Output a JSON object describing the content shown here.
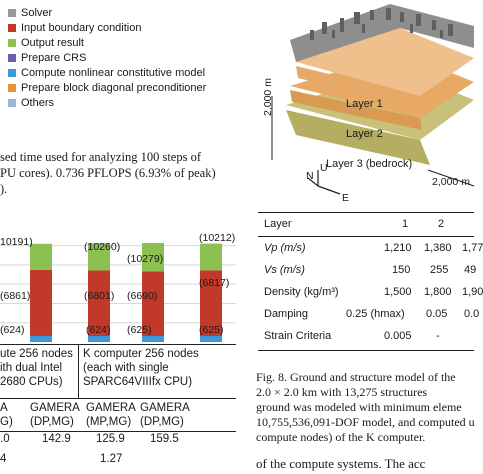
{
  "legend": [
    {
      "label": "Solver",
      "color": "#9a9a9a"
    },
    {
      "label": "Input boundary condition",
      "color": "#c0392b"
    },
    {
      "label": "Output result",
      "color": "#8cc152"
    },
    {
      "label": "Prepare CRS",
      "color": "#6a5fa8"
    },
    {
      "label": "Compute nonlinear constitutive model",
      "color": "#3a9ad9"
    },
    {
      "label": "Prepare block diagonal preconditioner",
      "color": "#e9923a"
    },
    {
      "label": "Others",
      "color": "#9bb7d4"
    }
  ],
  "caption_left": {
    "line1": "sed time used for analyzing 100 steps of",
    "line2": "PU cores). 0.736 PFLOPS (6.93% of peak)",
    "line3": ")."
  },
  "chart_data": {
    "type": "bar",
    "categories": [
      "GAMERA (MP,MG) dual Intel",
      "GAMERA (DP,MG) dual Intel",
      "GAMERA (MP,MG) K computer",
      "GAMERA (DP,MG) K computer"
    ],
    "series": [
      {
        "name": "Compute nonlinear constitutive model",
        "values": [
          624,
          624,
          625,
          625
        ]
      },
      {
        "name": "Input boundary condition",
        "values": [
          6861,
          6801,
          6690,
          6817
        ]
      },
      {
        "name": "Output result",
        "values": [
          2706,
          2835,
          2964,
          2770
        ]
      }
    ],
    "totals": [
      10191,
      10260,
      10279,
      10212
    ],
    "data_labels": {
      "bar1": [
        "(624)",
        "(6861)",
        "10191)"
      ],
      "bar2": [
        "(624)",
        "(6801)",
        "(10260)"
      ],
      "bar3": [
        "(625)",
        "(6690)",
        "(10279)"
      ],
      "bar4": [
        "(625)",
        "(6817)",
        "(10212)"
      ]
    },
    "ylim": [
      0,
      11000
    ]
  },
  "chart_groups": {
    "left": {
      "line1": "ute 256 nodes",
      "line2": "ith dual Intel",
      "line3": "2680 CPUs)"
    },
    "right": {
      "line1": "K computer 256 nodes",
      "line2": "(each with single",
      "line3": "SPARC64VIIIfx CPU)"
    }
  },
  "chart_table": {
    "headers": [
      "A",
      "GAMERA",
      "GAMERA",
      "GAMERA"
    ],
    "subheaders": [
      "G)",
      "(DP,MG)",
      "(MP,MG)",
      "(DP,MG)"
    ],
    "row1": [
      ".0",
      "142.9",
      "125.9",
      "159.5"
    ],
    "row2": [
      "4",
      "",
      "1.27",
      ""
    ]
  },
  "model3d": {
    "layer1": "Layer 1",
    "layer2": "Layer 2",
    "layer3": "Layer 3 (bedrock)",
    "dim_vertical": "2,000 m",
    "dim_horizontal": "2,000 m",
    "axis_n": "N",
    "axis_u": "U",
    "axis_e": "E"
  },
  "layer_table": {
    "headers": [
      "Layer",
      "1",
      "2"
    ],
    "rows": [
      {
        "label": "Vp (m/s)",
        "values": [
          "1,210",
          "1,380",
          "1,77"
        ]
      },
      {
        "label": "Vs (m/s)",
        "values": [
          "150",
          "255",
          "49"
        ]
      },
      {
        "label": "Density (kg/m³)",
        "values": [
          "1,500",
          "1,800",
          "1,90"
        ]
      },
      {
        "label": "Damping",
        "values": [
          "0.25 (hmax)",
          "0.05",
          "0.0"
        ]
      },
      {
        "label": "Strain Criteria",
        "values": [
          "0.005",
          "-",
          ""
        ]
      }
    ]
  },
  "fig8": {
    "line1": "Fig. 8.   Ground and structure model of the",
    "line2": "2.0  ×  2.0  km  with  13,275  structures",
    "line3": "ground was modeled with minimum eleme",
    "line4": "10,755,536,091-DOF model, and computed u",
    "line5": "compute nodes) of the K computer."
  },
  "bottom_text": "of  the  compute  systems.  The  acc"
}
